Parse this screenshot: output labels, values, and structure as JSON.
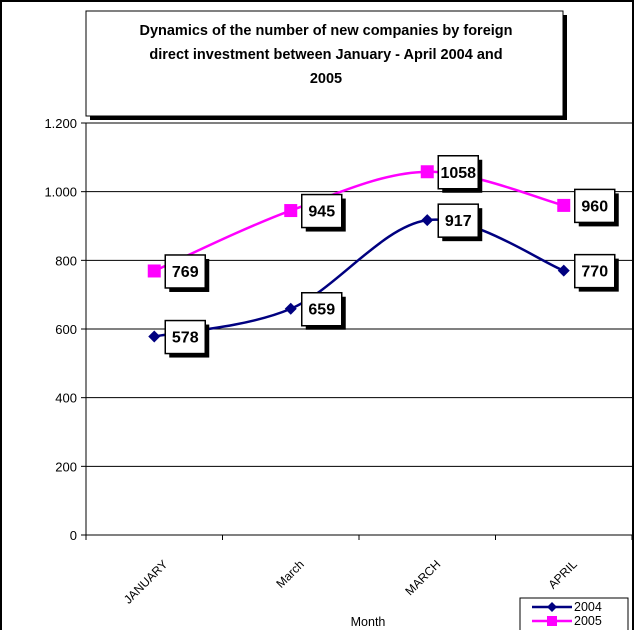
{
  "chart_data": {
    "type": "line",
    "title": "Dynamics of the number of new companies by foreign direct investment between January - April 2004 and 2005",
    "title_lines": [
      "Dynamics of the number of new companies by foreign",
      "direct investment between January - April 2004 and",
      "2005"
    ],
    "xlabel": "Month",
    "ylabel": "",
    "categories": [
      "JANUARY",
      "March",
      "MARCH",
      "APRIL"
    ],
    "ylim": [
      0,
      1200
    ],
    "yticks": [
      0,
      200,
      400,
      600,
      800,
      1000,
      1200
    ],
    "ytick_labels": [
      "0",
      "200",
      "400",
      "600",
      "800",
      "1.000",
      "1.200"
    ],
    "grid": true,
    "legend_position": "bottom-right",
    "series": [
      {
        "name": "2004",
        "values": [
          578,
          659,
          917,
          770
        ],
        "labels": [
          "578",
          "659",
          "917",
          "770"
        ],
        "color": "#000080",
        "marker": "diamond"
      },
      {
        "name": "2005",
        "values": [
          769,
          945,
          1058,
          960
        ],
        "labels": [
          "769",
          "945",
          "1058",
          "960"
        ],
        "color": "#ff00ff",
        "marker": "square"
      }
    ]
  }
}
